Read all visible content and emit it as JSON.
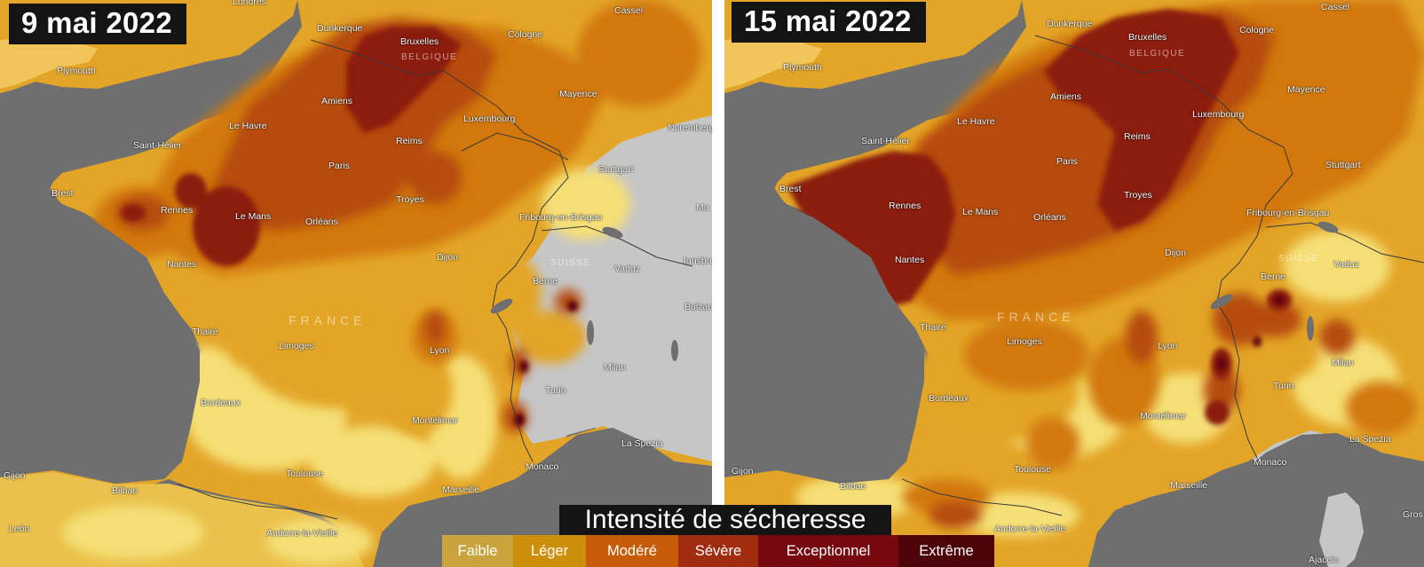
{
  "panels": [
    {
      "date": "9 mai 2022",
      "country_label": "FRANCE",
      "labels": [
        {
          "text": "Londres"
        },
        {
          "text": "Plymouth"
        },
        {
          "text": "Dunkerque"
        },
        {
          "text": "Bruxelles"
        },
        {
          "text": "BELGIQUE"
        },
        {
          "text": "Cologne"
        },
        {
          "text": "Cassel"
        },
        {
          "text": "Amiens"
        },
        {
          "text": "Mayence"
        },
        {
          "text": "Le Havre"
        },
        {
          "text": "Luxembourg"
        },
        {
          "text": "Saint-Hélier"
        },
        {
          "text": "Reims"
        },
        {
          "text": "Nuremberg"
        },
        {
          "text": "Paris"
        },
        {
          "text": "Stuttgart"
        },
        {
          "text": "Brest"
        },
        {
          "text": "Troyes"
        },
        {
          "text": "Rennes"
        },
        {
          "text": "Le Mans"
        },
        {
          "text": "Orléans"
        },
        {
          "text": "Fribourg-en-Brisgau"
        },
        {
          "text": "Mu"
        },
        {
          "text": "Dijon"
        },
        {
          "text": "SUISSE"
        },
        {
          "text": "Nantes"
        },
        {
          "text": "Vaduz"
        },
        {
          "text": "Innsbru"
        },
        {
          "text": "Berne"
        },
        {
          "text": "Bolzan"
        },
        {
          "text": "Thairé"
        },
        {
          "text": "Limoges"
        },
        {
          "text": "Lyon"
        },
        {
          "text": "Milan"
        },
        {
          "text": "Bordeaux"
        },
        {
          "text": "Turin"
        },
        {
          "text": "Montélimar"
        },
        {
          "text": "La Spezia"
        },
        {
          "text": "Monaco"
        },
        {
          "text": "Gijon"
        },
        {
          "text": "Toulouse"
        },
        {
          "text": "Bilbao"
        },
        {
          "text": "Marseille"
        },
        {
          "text": "León"
        },
        {
          "text": "Andorre-la-Vieille"
        }
      ]
    },
    {
      "date": "15 mai 2022",
      "country_label": "FRANCE",
      "labels": [
        {
          "text": "Cassel"
        },
        {
          "text": "Dunkerque"
        },
        {
          "text": "Bruxelles"
        },
        {
          "text": "BELGIQUE"
        },
        {
          "text": "Cologne"
        },
        {
          "text": "Plymouth"
        },
        {
          "text": "Amiens"
        },
        {
          "text": "Mayence"
        },
        {
          "text": "Le Havre"
        },
        {
          "text": "Luxembourg"
        },
        {
          "text": "Saint-Hélier"
        },
        {
          "text": "Reims"
        },
        {
          "text": "Paris"
        },
        {
          "text": "Stuttgart"
        },
        {
          "text": "Brest"
        },
        {
          "text": "Troyes"
        },
        {
          "text": "Rennes"
        },
        {
          "text": "Le Mans"
        },
        {
          "text": "Orléans"
        },
        {
          "text": "Fribourg-en-Brisgau"
        },
        {
          "text": "Dijon"
        },
        {
          "text": "SUISSE"
        },
        {
          "text": "Vaduz"
        },
        {
          "text": "Nantes"
        },
        {
          "text": "Berne"
        },
        {
          "text": "Thairé"
        },
        {
          "text": "Limoges"
        },
        {
          "text": "Lyon"
        },
        {
          "text": "Milan"
        },
        {
          "text": "Bordeaux"
        },
        {
          "text": "Turin"
        },
        {
          "text": "Montélimar"
        },
        {
          "text": "La Spezia"
        },
        {
          "text": "Gijon"
        },
        {
          "text": "Toulouse"
        },
        {
          "text": "Monaco"
        },
        {
          "text": "Bilbao"
        },
        {
          "text": "Marseille"
        },
        {
          "text": "Andorre-la-Vieille"
        },
        {
          "text": "Ajaccio"
        },
        {
          "text": "Gros"
        }
      ]
    }
  ],
  "legend": {
    "title": "Intensité de sécheresse",
    "items": [
      {
        "label": "Faible",
        "color": "#c9a33c"
      },
      {
        "label": "Léger",
        "color": "#cc8f0a"
      },
      {
        "label": "Modéré",
        "color": "#c65d06"
      },
      {
        "label": "Sévère",
        "color": "#a12d10"
      },
      {
        "label": "Exceptionnel",
        "color": "#770810"
      },
      {
        "label": "Extrême",
        "color": "#4d0409"
      }
    ]
  },
  "colors": {
    "sea": "#6f6f6f",
    "land_nodata": "#c6c6c6",
    "faible_light": "#f5df76",
    "faible": "#e9c14c",
    "leger": "#e3a528",
    "modere": "#d27810",
    "severe": "#b64b0d",
    "exceptionnel": "#8c1b10",
    "extreme": "#5c0509",
    "border": "#3a3a3a"
  }
}
